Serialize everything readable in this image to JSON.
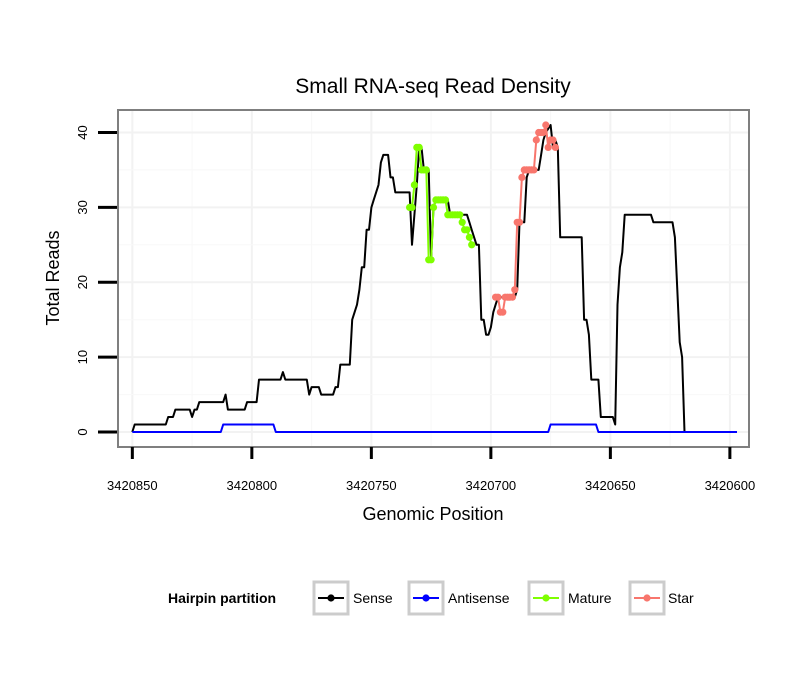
{
  "chart_data": {
    "type": "line",
    "title": "Small RNA-seq Read Density",
    "xlabel": "Genomic Position",
    "ylabel": "Total Reads",
    "xlim": [
      3420856,
      3420592
    ],
    "x_reversed": true,
    "ylim": [
      -2,
      43
    ],
    "xticks": [
      3420850,
      3420800,
      3420750,
      3420700,
      3420650,
      3420600
    ],
    "xtick_labels": [
      "3420850",
      "3420800",
      "3420750",
      "3420700",
      "3420650",
      "3420600"
    ],
    "yticks": [
      0,
      10,
      20,
      30,
      40
    ],
    "ytick_labels": [
      "0",
      "10",
      "20",
      "30",
      "40"
    ],
    "grid": true,
    "legend": {
      "title": "Hairpin partition",
      "position": "bottom",
      "entries": [
        "Sense",
        "Antisense",
        "Mature",
        "Star"
      ]
    },
    "series": [
      {
        "name": "Sense",
        "color": "#000000",
        "markers": false,
        "points": [
          [
            3420850,
            0
          ],
          [
            3420849,
            1
          ],
          [
            3420836,
            1
          ],
          [
            3420835,
            2
          ],
          [
            3420833,
            2
          ],
          [
            3420832,
            3
          ],
          [
            3420826,
            3
          ],
          [
            3420825,
            2
          ],
          [
            3420824,
            3
          ],
          [
            3420823,
            3
          ],
          [
            3420822,
            4
          ],
          [
            3420812,
            4
          ],
          [
            3420811,
            5
          ],
          [
            3420810,
            3
          ],
          [
            3420803,
            3
          ],
          [
            3420802,
            4
          ],
          [
            3420798,
            4
          ],
          [
            3420797,
            7
          ],
          [
            3420788,
            7
          ],
          [
            3420787,
            8
          ],
          [
            3420786,
            7
          ],
          [
            3420777,
            7
          ],
          [
            3420776,
            5
          ],
          [
            3420775,
            6
          ],
          [
            3420772,
            6
          ],
          [
            3420771,
            5
          ],
          [
            3420766,
            5
          ],
          [
            3420765,
            6
          ],
          [
            3420764,
            6
          ],
          [
            3420763,
            9
          ],
          [
            3420759,
            9
          ],
          [
            3420758,
            15
          ],
          [
            3420757,
            16
          ],
          [
            3420756,
            17
          ],
          [
            3420755,
            19
          ],
          [
            3420754,
            22
          ],
          [
            3420753,
            22
          ],
          [
            3420752,
            27
          ],
          [
            3420751,
            27
          ],
          [
            3420750,
            30
          ],
          [
            3420749,
            31
          ],
          [
            3420748,
            32
          ],
          [
            3420747,
            33
          ],
          [
            3420746,
            36
          ],
          [
            3420745,
            37
          ],
          [
            3420743,
            37
          ],
          [
            3420742,
            34
          ],
          [
            3420741,
            34
          ],
          [
            3420740,
            32
          ],
          [
            3420734,
            32
          ],
          [
            3420733,
            25
          ],
          [
            3420732,
            29
          ],
          [
            3420731,
            33
          ],
          [
            3420730,
            38
          ],
          [
            3420729,
            38
          ],
          [
            3420728,
            35
          ],
          [
            3420726,
            35
          ],
          [
            3420725,
            23
          ],
          [
            3420724,
            30
          ],
          [
            3420723,
            31
          ],
          [
            3420718,
            31
          ],
          [
            3420717,
            29
          ],
          [
            3420710,
            29
          ],
          [
            3420709,
            28
          ],
          [
            3420708,
            27
          ],
          [
            3420707,
            26
          ],
          [
            3420706,
            25
          ],
          [
            3420705,
            25
          ],
          [
            3420704,
            15
          ],
          [
            3420703,
            15
          ],
          [
            3420702,
            13
          ],
          [
            3420701,
            13
          ],
          [
            3420700,
            14
          ],
          [
            3420699,
            16
          ],
          [
            3420698,
            17
          ],
          [
            3420697,
            18
          ],
          [
            3420690,
            18
          ],
          [
            3420689,
            19
          ],
          [
            3420688,
            28
          ],
          [
            3420686,
            28
          ],
          [
            3420685,
            34
          ],
          [
            3420684,
            35
          ],
          [
            3420680,
            35
          ],
          [
            3420679,
            37
          ],
          [
            3420678,
            39
          ],
          [
            3420677,
            40
          ],
          [
            3420675,
            41
          ],
          [
            3420674,
            38
          ],
          [
            3420673,
            39
          ],
          [
            3420672,
            38
          ],
          [
            3420671,
            26
          ],
          [
            3420662,
            26
          ],
          [
            3420661,
            15
          ],
          [
            3420660,
            15
          ],
          [
            3420659,
            13
          ],
          [
            3420658,
            7
          ],
          [
            3420655,
            7
          ],
          [
            3420654,
            2
          ],
          [
            3420649,
            2
          ],
          [
            3420648,
            1
          ],
          [
            3420647,
            17
          ],
          [
            3420646,
            22
          ],
          [
            3420645,
            24
          ],
          [
            3420644,
            29
          ],
          [
            3420633,
            29
          ],
          [
            3420632,
            28
          ],
          [
            3420624,
            28
          ],
          [
            3420623,
            26
          ],
          [
            3420622,
            19
          ],
          [
            3420621,
            12
          ],
          [
            3420620,
            10
          ],
          [
            3420619,
            0
          ],
          [
            3420597,
            0
          ]
        ]
      },
      {
        "name": "Antisense",
        "color": "#0000ff",
        "markers": false,
        "points": [
          [
            3420850,
            0
          ],
          [
            3420813,
            0
          ],
          [
            3420812,
            1
          ],
          [
            3420791,
            1
          ],
          [
            3420790,
            0
          ],
          [
            3420676,
            0
          ],
          [
            3420675,
            1
          ],
          [
            3420656,
            1
          ],
          [
            3420655,
            0
          ],
          [
            3420597,
            0
          ]
        ]
      },
      {
        "name": "Mature",
        "color": "#7fff00",
        "markers": true,
        "points": [
          [
            3420734,
            30
          ],
          [
            3420733,
            30
          ],
          [
            3420732,
            33
          ],
          [
            3420731,
            38
          ],
          [
            3420730,
            38
          ],
          [
            3420729,
            35
          ],
          [
            3420728,
            35
          ],
          [
            3420727,
            35
          ],
          [
            3420726,
            23
          ],
          [
            3420725,
            23
          ],
          [
            3420724,
            30
          ],
          [
            3420723,
            31
          ],
          [
            3420722,
            31
          ],
          [
            3420721,
            31
          ],
          [
            3420720,
            31
          ],
          [
            3420719,
            31
          ],
          [
            3420718,
            29
          ],
          [
            3420717,
            29
          ],
          [
            3420716,
            29
          ],
          [
            3420715,
            29
          ],
          [
            3420714,
            29
          ],
          [
            3420713,
            29
          ],
          [
            3420712,
            28
          ],
          [
            3420711,
            27
          ],
          [
            3420710,
            27
          ],
          [
            3420709,
            26
          ],
          [
            3420708,
            25
          ]
        ]
      },
      {
        "name": "Star",
        "color": "#f8766d",
        "markers": true,
        "points": [
          [
            3420698,
            18
          ],
          [
            3420697,
            18
          ],
          [
            3420696,
            16
          ],
          [
            3420695,
            16
          ],
          [
            3420694,
            18
          ],
          [
            3420693,
            18
          ],
          [
            3420692,
            18
          ],
          [
            3420691,
            18
          ],
          [
            3420690,
            19
          ],
          [
            3420689,
            28
          ],
          [
            3420688,
            28
          ],
          [
            3420687,
            34
          ],
          [
            3420686,
            35
          ],
          [
            3420685,
            35
          ],
          [
            3420684,
            35
          ],
          [
            3420683,
            35
          ],
          [
            3420682,
            35
          ],
          [
            3420681,
            39
          ],
          [
            3420680,
            40
          ],
          [
            3420679,
            40
          ],
          [
            3420678,
            40
          ],
          [
            3420677,
            41
          ],
          [
            3420676,
            38
          ],
          [
            3420675,
            39
          ],
          [
            3420674,
            39
          ],
          [
            3420673,
            38
          ]
        ]
      }
    ]
  }
}
